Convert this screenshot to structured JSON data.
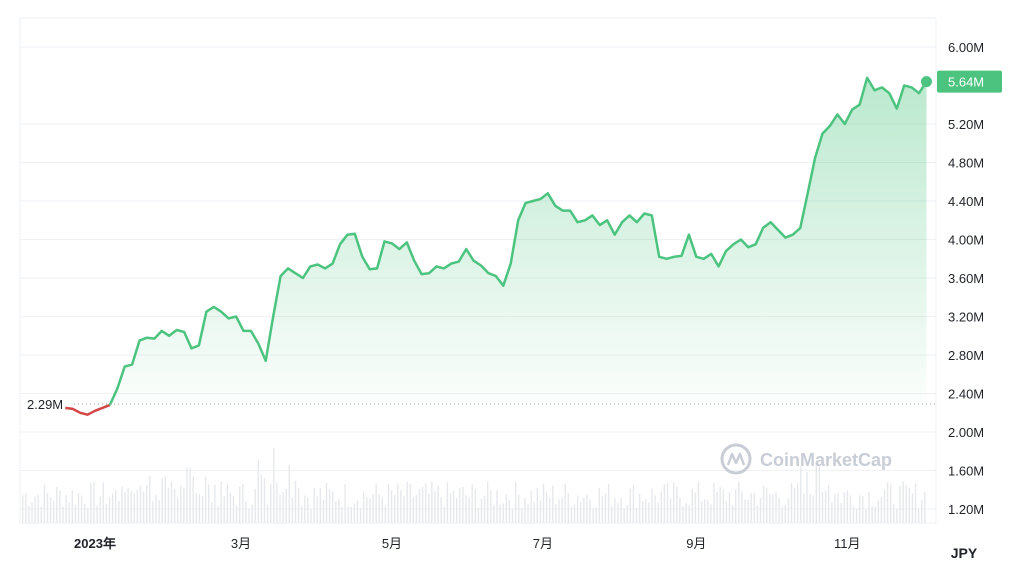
{
  "chart_data": {
    "type": "area",
    "currency": "JPY",
    "baseline_label": "2.29M",
    "baseline_value": 2.29,
    "current_label": "5.64M",
    "current_value": 5.64,
    "watermark": "CoinMarketCap",
    "y_unit": "M",
    "ylim": [
      1.0,
      6.3
    ],
    "y_ticks": [
      {
        "value": 6.0,
        "label": "6.00M"
      },
      {
        "value": 5.2,
        "label": "5.20M"
      },
      {
        "value": 4.8,
        "label": "4.80M"
      },
      {
        "value": 4.4,
        "label": "4.40M"
      },
      {
        "value": 4.0,
        "label": "4.00M"
      },
      {
        "value": 3.6,
        "label": "3.60M"
      },
      {
        "value": 3.2,
        "label": "3.20M"
      },
      {
        "value": 2.8,
        "label": "2.80M"
      },
      {
        "value": 2.4,
        "label": "2.40M"
      },
      {
        "value": 2.0,
        "label": "2.00M"
      },
      {
        "value": 1.6,
        "label": "1.60M"
      },
      {
        "value": 1.2,
        "label": "1.20M"
      }
    ],
    "x_ticks": [
      {
        "label": "2023年",
        "date": "2023-01-01",
        "bold": true
      },
      {
        "label": "3月",
        "date": "2023-03-01",
        "bold": false
      },
      {
        "label": "5月",
        "date": "2023-05-01",
        "bold": false
      },
      {
        "label": "7月",
        "date": "2023-07-01",
        "bold": false
      },
      {
        "label": "9月",
        "date": "2023-09-01",
        "bold": false
      },
      {
        "label": "11月",
        "date": "2023-11-01",
        "bold": false
      }
    ],
    "xlim": [
      "2022-12-20",
      "2023-12-06"
    ],
    "colors": {
      "up": "#4cc47f",
      "down": "#d44646",
      "grid": "#eff1f4",
      "baseline": "#9aa0a8"
    },
    "series": [
      {
        "values": [
          {
            "x": "2022-12-20",
            "y": 2.25
          },
          {
            "x": "2022-12-23",
            "y": 2.24
          },
          {
            "x": "2022-12-26",
            "y": 2.2
          },
          {
            "x": "2022-12-29",
            "y": 2.18
          },
          {
            "x": "2023-01-01",
            "y": 2.22
          },
          {
            "x": "2023-01-04",
            "y": 2.25
          },
          {
            "x": "2023-01-07",
            "y": 2.28
          },
          {
            "x": "2023-01-10",
            "y": 2.45
          },
          {
            "x": "2023-01-13",
            "y": 2.68
          },
          {
            "x": "2023-01-16",
            "y": 2.7
          },
          {
            "x": "2023-01-19",
            "y": 2.95
          },
          {
            "x": "2023-01-22",
            "y": 2.98
          },
          {
            "x": "2023-01-25",
            "y": 2.97
          },
          {
            "x": "2023-01-28",
            "y": 3.05
          },
          {
            "x": "2023-01-31",
            "y": 3.0
          },
          {
            "x": "2023-02-03",
            "y": 3.06
          },
          {
            "x": "2023-02-06",
            "y": 3.04
          },
          {
            "x": "2023-02-09",
            "y": 2.87
          },
          {
            "x": "2023-02-12",
            "y": 2.9
          },
          {
            "x": "2023-02-15",
            "y": 3.25
          },
          {
            "x": "2023-02-18",
            "y": 3.3
          },
          {
            "x": "2023-02-21",
            "y": 3.25
          },
          {
            "x": "2023-02-24",
            "y": 3.18
          },
          {
            "x": "2023-02-27",
            "y": 3.2
          },
          {
            "x": "2023-03-02",
            "y": 3.05
          },
          {
            "x": "2023-03-05",
            "y": 3.05
          },
          {
            "x": "2023-03-08",
            "y": 2.92
          },
          {
            "x": "2023-03-11",
            "y": 2.74
          },
          {
            "x": "2023-03-14",
            "y": 3.2
          },
          {
            "x": "2023-03-17",
            "y": 3.62
          },
          {
            "x": "2023-03-20",
            "y": 3.7
          },
          {
            "x": "2023-03-23",
            "y": 3.65
          },
          {
            "x": "2023-03-26",
            "y": 3.6
          },
          {
            "x": "2023-03-29",
            "y": 3.72
          },
          {
            "x": "2023-04-01",
            "y": 3.74
          },
          {
            "x": "2023-04-04",
            "y": 3.7
          },
          {
            "x": "2023-04-07",
            "y": 3.75
          },
          {
            "x": "2023-04-10",
            "y": 3.95
          },
          {
            "x": "2023-04-13",
            "y": 4.05
          },
          {
            "x": "2023-04-16",
            "y": 4.06
          },
          {
            "x": "2023-04-19",
            "y": 3.82
          },
          {
            "x": "2023-04-22",
            "y": 3.69
          },
          {
            "x": "2023-04-25",
            "y": 3.7
          },
          {
            "x": "2023-04-28",
            "y": 3.98
          },
          {
            "x": "2023-05-01",
            "y": 3.96
          },
          {
            "x": "2023-05-04",
            "y": 3.9
          },
          {
            "x": "2023-05-07",
            "y": 3.97
          },
          {
            "x": "2023-05-10",
            "y": 3.78
          },
          {
            "x": "2023-05-13",
            "y": 3.64
          },
          {
            "x": "2023-05-16",
            "y": 3.65
          },
          {
            "x": "2023-05-19",
            "y": 3.72
          },
          {
            "x": "2023-05-22",
            "y": 3.7
          },
          {
            "x": "2023-05-25",
            "y": 3.75
          },
          {
            "x": "2023-05-28",
            "y": 3.77
          },
          {
            "x": "2023-05-31",
            "y": 3.9
          },
          {
            "x": "2023-06-03",
            "y": 3.78
          },
          {
            "x": "2023-06-06",
            "y": 3.73
          },
          {
            "x": "2023-06-09",
            "y": 3.65
          },
          {
            "x": "2023-06-12",
            "y": 3.62
          },
          {
            "x": "2023-06-15",
            "y": 3.52
          },
          {
            "x": "2023-06-18",
            "y": 3.75
          },
          {
            "x": "2023-06-21",
            "y": 4.2
          },
          {
            "x": "2023-06-24",
            "y": 4.38
          },
          {
            "x": "2023-06-27",
            "y": 4.4
          },
          {
            "x": "2023-06-30",
            "y": 4.42
          },
          {
            "x": "2023-07-03",
            "y": 4.48
          },
          {
            "x": "2023-07-06",
            "y": 4.35
          },
          {
            "x": "2023-07-09",
            "y": 4.3
          },
          {
            "x": "2023-07-12",
            "y": 4.3
          },
          {
            "x": "2023-07-15",
            "y": 4.18
          },
          {
            "x": "2023-07-18",
            "y": 4.2
          },
          {
            "x": "2023-07-21",
            "y": 4.25
          },
          {
            "x": "2023-07-24",
            "y": 4.15
          },
          {
            "x": "2023-07-27",
            "y": 4.2
          },
          {
            "x": "2023-07-30",
            "y": 4.05
          },
          {
            "x": "2023-08-02",
            "y": 4.18
          },
          {
            "x": "2023-08-05",
            "y": 4.25
          },
          {
            "x": "2023-08-08",
            "y": 4.18
          },
          {
            "x": "2023-08-11",
            "y": 4.27
          },
          {
            "x": "2023-08-14",
            "y": 4.25
          },
          {
            "x": "2023-08-17",
            "y": 3.82
          },
          {
            "x": "2023-08-20",
            "y": 3.8
          },
          {
            "x": "2023-08-23",
            "y": 3.82
          },
          {
            "x": "2023-08-26",
            "y": 3.83
          },
          {
            "x": "2023-08-29",
            "y": 4.05
          },
          {
            "x": "2023-09-01",
            "y": 3.82
          },
          {
            "x": "2023-09-04",
            "y": 3.8
          },
          {
            "x": "2023-09-07",
            "y": 3.85
          },
          {
            "x": "2023-09-10",
            "y": 3.72
          },
          {
            "x": "2023-09-13",
            "y": 3.88
          },
          {
            "x": "2023-09-16",
            "y": 3.95
          },
          {
            "x": "2023-09-19",
            "y": 4.0
          },
          {
            "x": "2023-09-22",
            "y": 3.92
          },
          {
            "x": "2023-09-25",
            "y": 3.95
          },
          {
            "x": "2023-09-28",
            "y": 4.12
          },
          {
            "x": "2023-10-01",
            "y": 4.18
          },
          {
            "x": "2023-10-04",
            "y": 4.1
          },
          {
            "x": "2023-10-07",
            "y": 4.02
          },
          {
            "x": "2023-10-10",
            "y": 4.05
          },
          {
            "x": "2023-10-13",
            "y": 4.12
          },
          {
            "x": "2023-10-16",
            "y": 4.48
          },
          {
            "x": "2023-10-19",
            "y": 4.85
          },
          {
            "x": "2023-10-22",
            "y": 5.1
          },
          {
            "x": "2023-10-25",
            "y": 5.18
          },
          {
            "x": "2023-10-28",
            "y": 5.3
          },
          {
            "x": "2023-10-31",
            "y": 5.2
          },
          {
            "x": "2023-11-03",
            "y": 5.35
          },
          {
            "x": "2023-11-06",
            "y": 5.4
          },
          {
            "x": "2023-11-09",
            "y": 5.68
          },
          {
            "x": "2023-11-12",
            "y": 5.55
          },
          {
            "x": "2023-11-15",
            "y": 5.58
          },
          {
            "x": "2023-11-18",
            "y": 5.52
          },
          {
            "x": "2023-11-21",
            "y": 5.36
          },
          {
            "x": "2023-11-24",
            "y": 5.6
          },
          {
            "x": "2023-11-27",
            "y": 5.58
          },
          {
            "x": "2023-11-30",
            "y": 5.52
          },
          {
            "x": "2023-12-03",
            "y": 5.64
          }
        ]
      }
    ]
  }
}
